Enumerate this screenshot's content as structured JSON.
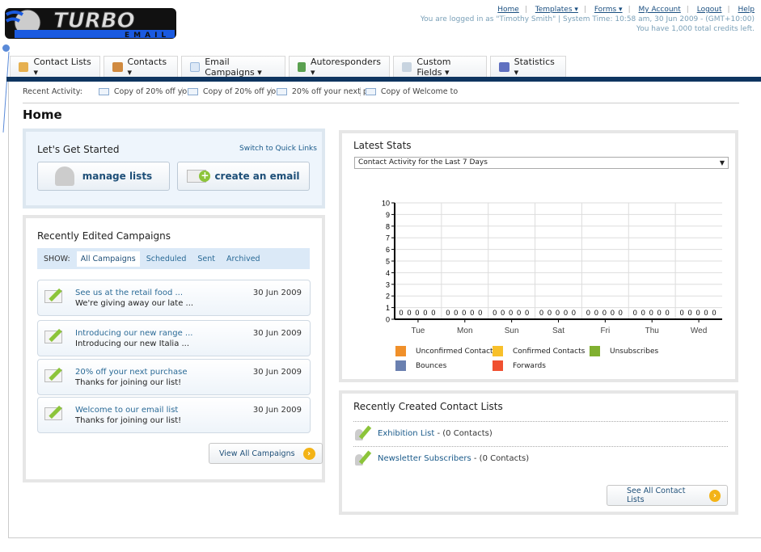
{
  "brand": {
    "logo_text": "TURBO",
    "logo_sub": "EMAIL"
  },
  "top": {
    "links": [
      "Home",
      "Templates ▾",
      "Forms ▾",
      "My Account",
      "Logout",
      "Help"
    ],
    "login": "You are logged in as \"Timothy Smith\" | System Time: 10:58 am, 30 Jun 2009 - (GMT+10:00)",
    "credits": "You have 1,000 total credits left."
  },
  "nav": [
    {
      "label": "Contact Lists ▾",
      "color": "#e6b050"
    },
    {
      "label": "Contacts ▾",
      "color": "#d08a40"
    },
    {
      "label": "Email Campaigns ▾",
      "color": "#9ab8dc"
    },
    {
      "label": "Autoresponders ▾",
      "color": "#5aa050"
    },
    {
      "label": "Custom Fields ▾",
      "color": "#a8b8c8"
    },
    {
      "label": "Statistics ▾",
      "color": "#6070c0"
    }
  ],
  "recent": {
    "label": "Recent Activity:",
    "items": [
      "Copy of 20% off yo",
      "Copy of 20% off yo",
      "20% off your next p",
      "Copy of Welcome to"
    ]
  },
  "page_title": "Home",
  "get_started": {
    "title": "Let's Get Started",
    "switch": "Switch to Quick Links",
    "manage": "manage lists",
    "create": "create an email"
  },
  "campaigns": {
    "title": "Recently Edited Campaigns",
    "show": "SHOW:",
    "filters": [
      "All Campaigns",
      "Scheduled",
      "Sent",
      "Archived"
    ],
    "items": [
      {
        "title": "See us at the retail food ...",
        "sub": "We're giving away our late ...",
        "date": "30 Jun 2009"
      },
      {
        "title": "Introducing our new range ...",
        "sub": "Introducing our new Italia ...",
        "date": "30 Jun 2009"
      },
      {
        "title": "20% off your next purchase",
        "sub": "Thanks for joining our list!",
        "date": "30 Jun 2009"
      },
      {
        "title": "Welcome to our email list",
        "sub": "Thanks for joining our list!",
        "date": "30 Jun 2009"
      }
    ],
    "view_all": "View All Campaigns"
  },
  "stats": {
    "title": "Latest Stats",
    "select": "Contact Activity for the Last 7 Days"
  },
  "chart_data": {
    "type": "bar",
    "categories": [
      "Tue",
      "Mon",
      "Sun",
      "Sat",
      "Fri",
      "Thu",
      "Wed"
    ],
    "ylim": [
      0,
      10
    ],
    "yticks": [
      0,
      1,
      2,
      3,
      4,
      5,
      6,
      7,
      8,
      9,
      10
    ],
    "grid": true,
    "legend": "bottom",
    "series": [
      {
        "name": "Unconfirmed Contacts",
        "color": "#f0902a",
        "values": [
          0,
          0,
          0,
          0,
          0,
          0,
          0
        ]
      },
      {
        "name": "Confirmed Contacts",
        "color": "#f8c02a",
        "values": [
          0,
          0,
          0,
          0,
          0,
          0,
          0
        ]
      },
      {
        "name": "Unsubscribes",
        "color": "#80b030",
        "values": [
          0,
          0,
          0,
          0,
          0,
          0,
          0
        ]
      },
      {
        "name": "Bounces",
        "color": "#6a80b0",
        "values": [
          0,
          0,
          0,
          0,
          0,
          0,
          0
        ]
      },
      {
        "name": "Forwards",
        "color": "#f05030",
        "values": [
          0,
          0,
          0,
          0,
          0,
          0,
          0
        ]
      }
    ]
  },
  "lists": {
    "title": "Recently Created Contact Lists",
    "items": [
      {
        "name": "Exhibition List",
        "count": " - (0 Contacts)"
      },
      {
        "name": "Newsletter Subscribers",
        "count": " - (0 Contacts)"
      }
    ],
    "see_all": "See All Contact Lists"
  }
}
